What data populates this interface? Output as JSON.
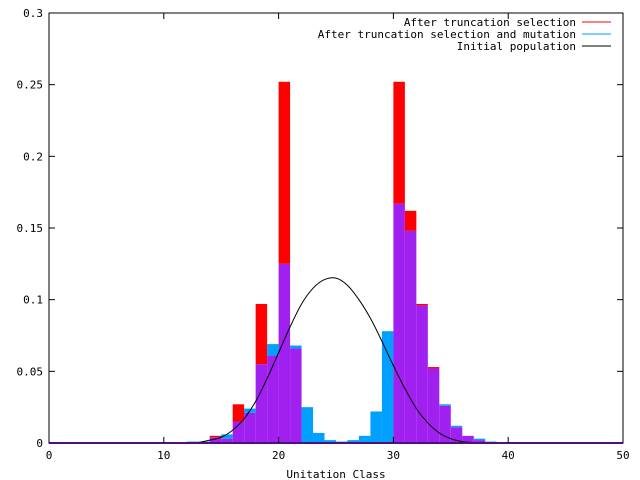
{
  "chart_data": {
    "type": "bar",
    "title": "",
    "xlabel": "Unitation Class",
    "ylabel": "",
    "xlim": [
      0,
      50
    ],
    "ylim": [
      0,
      0.3
    ],
    "x_ticks": [
      0,
      10,
      20,
      30,
      40,
      50
    ],
    "y_ticks": [
      0,
      0.05,
      0.1,
      0.15,
      0.2,
      0.25,
      0.3
    ],
    "x_tick_labels": [
      "0",
      "10",
      "20",
      "30",
      "40",
      "50"
    ],
    "y_tick_labels": [
      "0",
      "0.05",
      "0.1",
      "0.15",
      "0.2",
      "0.25",
      "0.3"
    ],
    "grid": false,
    "legend_position": "top-right",
    "overlap_color": "#a020f0",
    "series": [
      {
        "name": "After truncation selection",
        "color": "#ff0000",
        "style": "bars",
        "x": [
          14,
          15,
          16,
          17,
          18,
          19,
          20,
          21,
          30,
          31,
          32,
          33,
          34,
          35,
          36,
          37
        ],
        "values": [
          0.005,
          0.003,
          0.027,
          0.021,
          0.097,
          0.061,
          0.252,
          0.066,
          0.252,
          0.162,
          0.097,
          0.053,
          0.026,
          0.011,
          0.005,
          0.002
        ]
      },
      {
        "name": "After truncation selection and mutation",
        "color": "#00a0ff",
        "style": "bars",
        "x": [
          12,
          13,
          14,
          15,
          16,
          17,
          18,
          19,
          20,
          21,
          22,
          23,
          24,
          25,
          26,
          27,
          28,
          29,
          30,
          31,
          32,
          33,
          34,
          35,
          36,
          37,
          38
        ],
        "values": [
          0.001,
          0.001,
          0.004,
          0.006,
          0.015,
          0.024,
          0.055,
          0.069,
          0.125,
          0.068,
          0.025,
          0.007,
          0.002,
          0.001,
          0.002,
          0.005,
          0.022,
          0.078,
          0.167,
          0.148,
          0.096,
          0.052,
          0.027,
          0.012,
          0.005,
          0.003,
          0.001
        ]
      },
      {
        "name": "Initial population",
        "color": "#000000",
        "style": "line",
        "x": [
          13,
          14,
          15,
          16,
          17,
          18,
          19,
          20,
          21,
          22,
          23,
          24,
          25,
          26,
          27,
          28,
          29,
          30,
          31,
          32,
          33,
          34,
          35,
          36,
          37
        ],
        "values": [
          0.0003,
          0.002,
          0.004,
          0.009,
          0.017,
          0.029,
          0.045,
          0.063,
          0.081,
          0.097,
          0.108,
          0.114,
          0.115,
          0.11,
          0.1,
          0.087,
          0.071,
          0.054,
          0.038,
          0.024,
          0.014,
          0.007,
          0.003,
          0.001,
          0.0003
        ]
      }
    ]
  }
}
